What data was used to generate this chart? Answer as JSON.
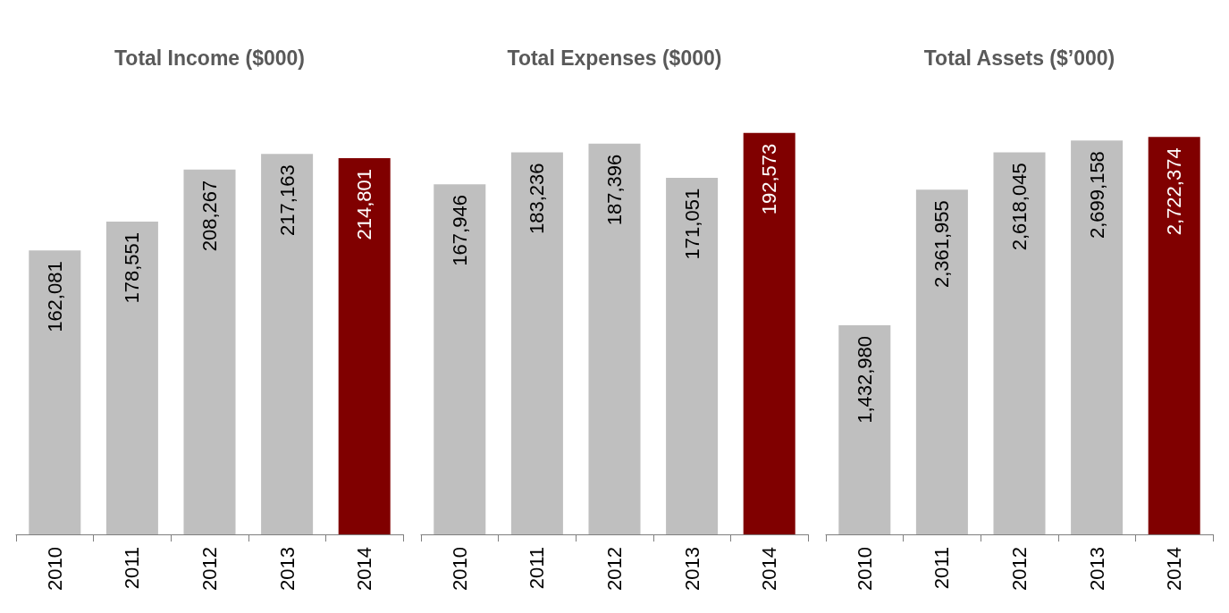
{
  "chart_data": [
    {
      "type": "bar",
      "title": "Total Income ($000)",
      "categories": [
        "2010",
        "2011",
        "2012",
        "2013",
        "2014"
      ],
      "values": [
        162081,
        178551,
        208267,
        217163,
        214801
      ],
      "value_labels": [
        "162,081",
        "178,551",
        "208,267",
        "217,163",
        "214,801"
      ],
      "colors": [
        "#bfbfbf",
        "#bfbfbf",
        "#bfbfbf",
        "#bfbfbf",
        "#800000"
      ],
      "tick_labels": "x"
    },
    {
      "type": "bar",
      "title": "Total Expenses ($000)",
      "categories": [
        "2010",
        "2011",
        "2012",
        "2013",
        "2014"
      ],
      "values": [
        167946,
        183236,
        187396,
        171051,
        192573
      ],
      "value_labels": [
        "167,946",
        "183,236",
        "187,396",
        "171,051",
        "192,573"
      ],
      "colors": [
        "#bfbfbf",
        "#bfbfbf",
        "#bfbfbf",
        "#bfbfbf",
        "#800000"
      ],
      "tick_labels": "x"
    },
    {
      "type": "bar",
      "title": "Total Assets ($’000)",
      "categories": [
        "2010",
        "2011",
        "2012",
        "2013",
        "2014"
      ],
      "values": [
        1432980,
        2361955,
        2618045,
        2699158,
        2722374
      ],
      "value_labels": [
        "1,432,980",
        "2,361,955",
        "2,618,045",
        "2,699,158",
        "2,722,374"
      ],
      "colors": [
        "#bfbfbf",
        "#bfbfbf",
        "#bfbfbf",
        "#bfbfbf",
        "#800000"
      ],
      "tick_labels": "x"
    }
  ]
}
